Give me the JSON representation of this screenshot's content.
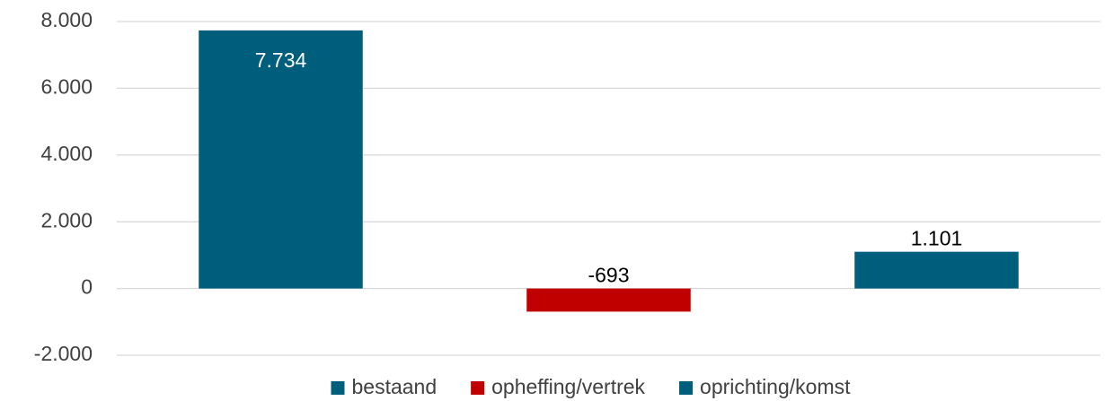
{
  "chart_data": {
    "type": "bar",
    "categories": [
      null
    ],
    "series": [
      {
        "name": "bestaand",
        "color": "#005e7d",
        "values": [
          7734
        ],
        "value_labels": [
          "7.734"
        ]
      },
      {
        "name": "opheffing/vertrek",
        "color": "#c00000",
        "values": [
          -693
        ],
        "value_labels": [
          "-693"
        ]
      },
      {
        "name": "oprichting/komst",
        "color": "#005e7d",
        "values": [
          1101
        ],
        "value_labels": [
          "1.101"
        ]
      }
    ],
    "ylim": [
      -2000,
      8000
    ],
    "yticks": [
      {
        "value": -2000,
        "label": "-2.000"
      },
      0,
      {
        "value": 2000,
        "label": "2.000"
      },
      {
        "value": 4000,
        "label": "4.000"
      },
      {
        "value": 6000,
        "label": "6.000"
      },
      {
        "value": 8000,
        "label": "8.000"
      }
    ],
    "grid": true,
    "legend": "bottom"
  }
}
